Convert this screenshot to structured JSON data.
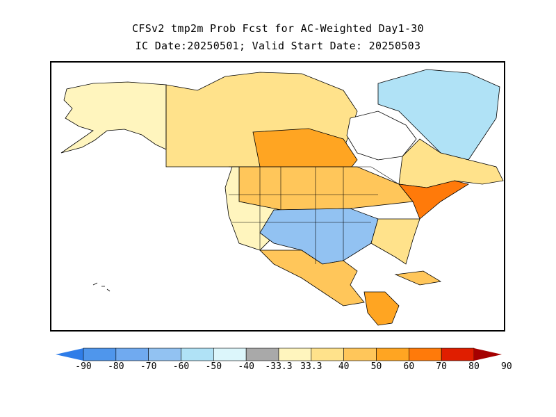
{
  "title": {
    "line1": "CFSv2 tmp2m Prob Fcst for AC-Weighted Day1-30",
    "line2": "IC Date:20250501; Valid Start Date: 20250503"
  },
  "map": {
    "region": "North America",
    "variable": "tmp2m probability forecast",
    "regions": [
      {
        "name": "alaska",
        "category": "above-33.3-40"
      },
      {
        "name": "northwest-canada",
        "category": "above-40-50"
      },
      {
        "name": "canadian-prairies",
        "category": "above-60-70"
      },
      {
        "name": "northern-plains",
        "category": "above-50-60"
      },
      {
        "name": "northeast-us",
        "category": "above-60-70"
      },
      {
        "name": "eastern-canada",
        "category": "above-40-50"
      },
      {
        "name": "arctic-islands-east",
        "category": "below-40-50"
      },
      {
        "name": "hudson-bay",
        "category": "no-data"
      },
      {
        "name": "western-us",
        "category": "above-33.3-40"
      },
      {
        "name": "southwest-southern-plains",
        "category": "below-50-60"
      },
      {
        "name": "southeast-us",
        "category": "above-40-50"
      },
      {
        "name": "mexico",
        "category": "above-50-60"
      },
      {
        "name": "central-america",
        "category": "above-60-70"
      }
    ]
  },
  "colorbar": {
    "ticks": [
      "-90",
      "-80",
      "-70",
      "-60",
      "-50",
      "-40",
      "-33.3",
      "33.3",
      "40",
      "50",
      "60",
      "70",
      "80",
      "90"
    ],
    "colors": [
      "#2f7de8",
      "#4f96ec",
      "#70aaf0",
      "#92c2f2",
      "#b0e2f6",
      "#dcf6fb",
      "#a9a9a9",
      "#fff5be",
      "#ffe28b",
      "#ffc65a",
      "#ffa522",
      "#ff7a0a",
      "#e01e00",
      "#a50000"
    ]
  }
}
